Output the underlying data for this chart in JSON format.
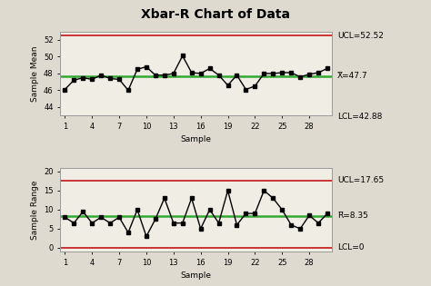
{
  "title": "Xbar-R Chart of Data",
  "xbar_data": [
    46.1,
    47.2,
    47.5,
    47.3,
    47.8,
    47.4,
    47.3,
    46.0,
    48.5,
    48.8,
    47.8,
    47.8,
    48.0,
    50.1,
    48.1,
    48.0,
    48.6,
    47.8,
    46.6,
    47.8,
    46.1,
    46.5,
    48.0,
    48.0,
    48.1,
    48.1,
    47.6,
    47.9,
    48.1,
    48.6
  ],
  "r_data": [
    8.0,
    6.5,
    9.5,
    6.5,
    8.0,
    6.5,
    8.0,
    4.0,
    10.0,
    3.0,
    7.5,
    13.0,
    6.5,
    6.5,
    13.0,
    5.0,
    10.0,
    6.5,
    15.0,
    6.0,
    9.0,
    9.0,
    15.0,
    13.0,
    10.0,
    6.0,
    5.0,
    8.5,
    6.5,
    9.0
  ],
  "xbar_ucl": 52.52,
  "xbar_cl": 47.7,
  "xbar_lcl": 42.88,
  "r_ucl": 17.65,
  "r_cl": 8.35,
  "r_lcl": 0,
  "xbar_ylim": [
    43,
    53
  ],
  "xbar_yticks": [
    44,
    46,
    48,
    50,
    52
  ],
  "r_ylim": [
    -1,
    21
  ],
  "r_yticks": [
    0,
    5,
    10,
    15,
    20
  ],
  "xlabel": "Sample",
  "xbar_ylabel": "Sample Mean",
  "r_ylabel": "Sample Range",
  "xticks": [
    1,
    4,
    7,
    10,
    13,
    16,
    19,
    22,
    25,
    28
  ],
  "line_color": "#000000",
  "ucl_color": "#cc3333",
  "lcl_color": "#cc3333",
  "cl_color": "#33aa33",
  "bg_color": "#dedad0",
  "plot_bg": "#f0ede4",
  "marker": "s",
  "markersize": 3,
  "linewidth": 1.0,
  "annotation_fontsize": 6.5,
  "title_fontsize": 10
}
